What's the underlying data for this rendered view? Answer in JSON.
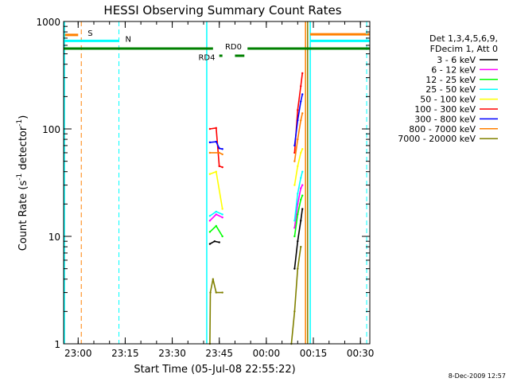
{
  "chart_data": {
    "type": "line",
    "title": "HESSI Observing Summary Count Rates",
    "xlabel": "Start Time (05-Jul-08 22:55:22)",
    "ylabel_main": "Count Rate (s",
    "ylabel_sup1": "-1",
    "ylabel_mid": " detector",
    "ylabel_sup2": "-1",
    "ylabel_end": ")",
    "y_scale": "log",
    "ylim": [
      1,
      1000
    ],
    "xlim": [
      "22:55:22",
      "00:33:00"
    ],
    "x_ticks": [
      "23:00",
      "23:15",
      "23:30",
      "23:45",
      "00:00",
      "00:15",
      "00:30"
    ],
    "y_ticks": [
      "1",
      "10",
      "100",
      "1000"
    ],
    "legend_placement": "right",
    "legend_header": [
      "Det 1,3,4,5,6,9,",
      "FDecim 1, Att 0"
    ],
    "series": [
      {
        "name": "3 - 6 keV",
        "color": "#000000",
        "segments": [
          [
            [
              "23:42:00",
              8.5
            ],
            [
              "23:43:30",
              9.0
            ],
            [
              "23:45:00",
              8.8
            ]
          ],
          [
            [
              "00:09:00",
              5.0
            ],
            [
              "00:10:00",
              9.0
            ],
            [
              "00:11:00",
              14.0
            ],
            [
              "00:11:30",
              18.0
            ]
          ]
        ]
      },
      {
        "name": "6 - 12 keV",
        "color": "#ff00ff",
        "segments": [
          [
            [
              "23:42:00",
              14.0
            ],
            [
              "23:44:00",
              16.0
            ],
            [
              "23:46:00",
              15.0
            ]
          ],
          [
            [
              "00:09:00",
              12.0
            ],
            [
              "00:10:00",
              20.0
            ],
            [
              "00:11:00",
              28.0
            ],
            [
              "00:11:30",
              30.0
            ]
          ]
        ]
      },
      {
        "name": "12 - 25 keV",
        "color": "#00ff00",
        "segments": [
          [
            [
              "23:42:00",
              11.0
            ],
            [
              "23:44:00",
              12.5
            ],
            [
              "23:46:00",
              10.0
            ]
          ],
          [
            [
              "00:09:00",
              10.0
            ],
            [
              "00:10:00",
              16.0
            ],
            [
              "00:11:00",
              22.0
            ],
            [
              "00:11:30",
              24.0
            ]
          ]
        ]
      },
      {
        "name": "25 - 50 keV",
        "color": "#00ffff",
        "segments": [
          [
            [
              "23:42:00",
              15.5
            ],
            [
              "23:44:00",
              17.0
            ],
            [
              "23:46:00",
              16.0
            ]
          ],
          [
            [
              "00:09:00",
              14.0
            ],
            [
              "00:10:00",
              25.0
            ],
            [
              "00:11:00",
              35.0
            ],
            [
              "00:11:30",
              40.0
            ]
          ]
        ]
      },
      {
        "name": "50 - 100 keV",
        "color": "#ffff00",
        "segments": [
          [
            [
              "23:42:00",
              38.0
            ],
            [
              "23:44:00",
              40.0
            ],
            [
              "23:46:00",
              18.0
            ]
          ],
          [
            [
              "00:09:00",
              30.0
            ],
            [
              "00:10:00",
              45.0
            ],
            [
              "00:11:00",
              60.0
            ],
            [
              "00:11:30",
              65.0
            ]
          ]
        ]
      },
      {
        "name": "100 - 300 keV",
        "color": "#ff0000",
        "segments": [
          [
            [
              "23:42:00",
              100.0
            ],
            [
              "23:44:00",
              102.0
            ],
            [
              "23:45:00",
              45.0
            ],
            [
              "23:46:00",
              44.0
            ]
          ],
          [
            [
              "00:09:00",
              60.0
            ],
            [
              "00:10:00",
              150.0
            ],
            [
              "00:11:00",
              250.0
            ],
            [
              "00:11:30",
              330.0
            ]
          ]
        ]
      },
      {
        "name": "300 - 800 keV",
        "color": "#0000ff",
        "segments": [
          [
            [
              "23:42:00",
              75.0
            ],
            [
              "23:44:00",
              76.0
            ],
            [
              "23:45:00",
              66.0
            ],
            [
              "23:46:00",
              65.0
            ]
          ],
          [
            [
              "00:09:00",
              70.0
            ],
            [
              "00:10:00",
              120.0
            ],
            [
              "00:11:00",
              180.0
            ],
            [
              "00:11:30",
              210.0
            ]
          ]
        ]
      },
      {
        "name": "800 - 7000 keV",
        "color": "#ff8000",
        "segments": [
          [
            [
              "23:42:00",
              60.0
            ],
            [
              "23:45:00",
              60.0
            ],
            [
              "23:46:00",
              58.0
            ]
          ],
          [
            [
              "00:09:00",
              50.0
            ],
            [
              "00:10:00",
              80.0
            ],
            [
              "00:11:00",
              120.0
            ],
            [
              "00:11:30",
              140.0
            ]
          ]
        ]
      },
      {
        "name": "7000 - 20000 keV",
        "color": "#808000",
        "segments": [
          [
            [
              "23:42:00",
              1.0
            ],
            [
              "23:42:10",
              3.0
            ],
            [
              "23:43:00",
              4.0
            ],
            [
              "23:44:00",
              3.0
            ],
            [
              "23:46:00",
              3.0
            ]
          ],
          [
            [
              "00:08:00",
              1.0
            ],
            [
              "00:09:00",
              2.0
            ],
            [
              "00:10:00",
              5.0
            ],
            [
              "00:11:00",
              8.0
            ]
          ]
        ]
      }
    ],
    "flag_lines": [
      {
        "label": "S",
        "color": "#ff8000",
        "style": "dashed",
        "level": 750,
        "x": "23:01:00",
        "bar_from": "22:55:22",
        "bar_to": "23:00:00"
      },
      {
        "label": "N",
        "color": "#00ffff",
        "style": "dashed",
        "level": 660,
        "x": "23:13:00",
        "bar_from": "22:55:22",
        "bar_to": "23:13:00"
      }
    ],
    "solid_lines": [
      {
        "color": "#00ffff",
        "x": "23:41:00"
      },
      {
        "color": "#ff8000",
        "x": "00:12:30"
      },
      {
        "color": "#808000",
        "x": "00:13:10"
      },
      {
        "color": "#00ffff",
        "x": "00:14:00"
      }
    ],
    "right_bars": [
      {
        "color": "#ff8000",
        "level": 760,
        "from": "00:14:00",
        "to": "00:33:00"
      },
      {
        "color": "#00ffff",
        "level": 660,
        "from": "00:14:00",
        "to": "00:33:00"
      }
    ],
    "right_dashed": {
      "color": "#00ffff",
      "x": "00:32:00"
    },
    "green_bars": {
      "color": "#008000",
      "top_level": 560,
      "top_segments": [
        [
          "22:55:22",
          "23:43:00"
        ],
        [
          "23:54:00",
          "00:33:00"
        ]
      ],
      "rd4_level": 480,
      "rd4_segments": [
        [
          "23:45:00",
          "23:46:00"
        ],
        [
          "23:50:00",
          "23:53:00"
        ]
      ],
      "labels": [
        {
          "text": "RD0",
          "x": "23:49:30",
          "level": 590
        },
        {
          "text": "RD4",
          "x": "23:41:00",
          "level": 470
        }
      ]
    }
  },
  "footer": {
    "timestamp": "8-Dec-2009 12:57"
  }
}
